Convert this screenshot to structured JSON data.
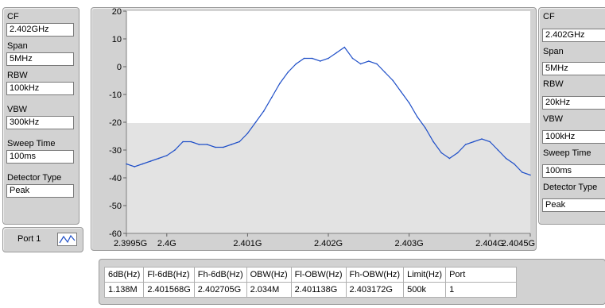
{
  "left_panel": {
    "fields": [
      {
        "label": "CF",
        "value": "2.402GHz"
      },
      {
        "label": "Span",
        "value": "5MHz"
      },
      {
        "label": "RBW",
        "value": "100kHz"
      },
      {
        "label": "VBW",
        "value": "300kHz"
      },
      {
        "label": "Sweep Time",
        "value": "100ms"
      },
      {
        "label": "Detector Type",
        "value": "Peak"
      }
    ]
  },
  "right_panel": {
    "fields": [
      {
        "label": "CF",
        "value": "2.402GHz"
      },
      {
        "label": "Span",
        "value": "5MHz"
      },
      {
        "label": "RBW",
        "value": "20kHz"
      },
      {
        "label": "VBW",
        "value": "100kHz"
      },
      {
        "label": "Sweep Time",
        "value": "100ms"
      },
      {
        "label": "Detector Type",
        "value": "Peak"
      }
    ]
  },
  "port": {
    "label": "Port 1"
  },
  "colors": {
    "trace": "#1f4fc8",
    "panel": "#d2d2d2",
    "plot_bg": "#ffffff",
    "plot_shaded": "#e3e3e3"
  },
  "chart_data": {
    "type": "line",
    "title": "",
    "xlabel": "",
    "ylabel": "",
    "xlim": [
      2.3995,
      2.4045
    ],
    "ylim": [
      -60,
      20
    ],
    "x_ticks": [
      {
        "value": 2.3995,
        "label": "2.3995G"
      },
      {
        "value": 2.4,
        "label": "2.4G"
      },
      {
        "value": 2.401,
        "label": "2.401G"
      },
      {
        "value": 2.402,
        "label": "2.402G"
      },
      {
        "value": 2.403,
        "label": "2.403G"
      },
      {
        "value": 2.404,
        "label": "2.404G"
      },
      {
        "value": 2.4045,
        "label": "2.4045G"
      }
    ],
    "y_ticks": [
      {
        "value": 20,
        "label": "20"
      },
      {
        "value": 10,
        "label": "10"
      },
      {
        "value": 0,
        "label": "0"
      },
      {
        "value": -10,
        "label": "-10"
      },
      {
        "value": -20,
        "label": "-20"
      },
      {
        "value": -30,
        "label": "-30"
      },
      {
        "value": -40,
        "label": "-40"
      },
      {
        "value": -50,
        "label": "-50"
      },
      {
        "value": -60,
        "label": "-60"
      }
    ],
    "grid": false,
    "series": [
      {
        "x": [
          2.3995,
          2.3996,
          2.3997,
          2.3998,
          2.3999,
          2.4,
          2.4001,
          2.4002,
          2.4003,
          2.4004,
          2.4005,
          2.4006,
          2.4007,
          2.4008,
          2.4009,
          2.401,
          2.4011,
          2.4012,
          2.4013,
          2.4014,
          2.4015,
          2.4016,
          2.4017,
          2.4018,
          2.4019,
          2.402,
          2.4021,
          2.4022,
          2.4023,
          2.4024,
          2.4025,
          2.4026,
          2.4027,
          2.4028,
          2.4029,
          2.403,
          2.4031,
          2.4032,
          2.4033,
          2.4034,
          2.4035,
          2.4036,
          2.4037,
          2.4038,
          2.4039,
          2.404,
          2.4041,
          2.4042,
          2.4043,
          2.4044,
          2.4045
        ],
        "y": [
          -35,
          -36,
          -35,
          -34,
          -33,
          -32,
          -30,
          -27,
          -27,
          -28,
          -28,
          -29,
          -29,
          -28,
          -27,
          -24,
          -20,
          -16,
          -11,
          -6,
          -2,
          1,
          3,
          3,
          2,
          3,
          5,
          7,
          3,
          1,
          2,
          1,
          -2,
          -5,
          -9,
          -13,
          -18,
          -22,
          -27,
          -31,
          -33,
          -31,
          -28,
          -27,
          -26,
          -27,
          -30,
          -33,
          -35,
          -38,
          -39
        ]
      }
    ]
  },
  "table": {
    "headers": [
      "6dB(Hz)",
      "Fl-6dB(Hz)",
      "Fh-6dB(Hz)",
      "OBW(Hz)",
      "Fl-OBW(Hz)",
      "Fh-OBW(Hz)",
      "Limit(Hz)",
      "Port"
    ],
    "rows": [
      [
        "1.138M",
        "2.401568G",
        "2.402705G",
        "2.034M",
        "2.401138G",
        "2.403172G",
        "500k",
        "1"
      ]
    ]
  }
}
